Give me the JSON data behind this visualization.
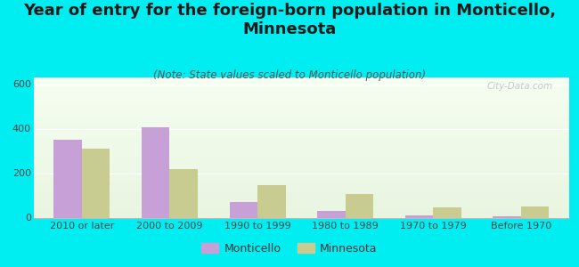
{
  "title": "Year of entry for the foreign-born population in Monticello,\nMinnesota",
  "subtitle": "(Note: State values scaled to Monticello population)",
  "categories": [
    "2010 or later",
    "2000 to 2009",
    "1990 to 1999",
    "1980 to 1989",
    "1970 to 1979",
    "Before 1970"
  ],
  "monticello_values": [
    350,
    405,
    70,
    30,
    12,
    8
  ],
  "minnesota_values": [
    310,
    220,
    145,
    105,
    45,
    50
  ],
  "monticello_color": "#c8a0d8",
  "minnesota_color": "#c8cc90",
  "ylim": [
    0,
    630
  ],
  "yticks": [
    0,
    200,
    400,
    600
  ],
  "background_color": "#00eef2",
  "plot_bg_top": "#f5fdf0",
  "plot_bg_bottom": "#e8f5e0",
  "title_fontsize": 13,
  "subtitle_fontsize": 8.5,
  "tick_fontsize": 8,
  "legend_fontsize": 9,
  "watermark": "City-Data.com"
}
